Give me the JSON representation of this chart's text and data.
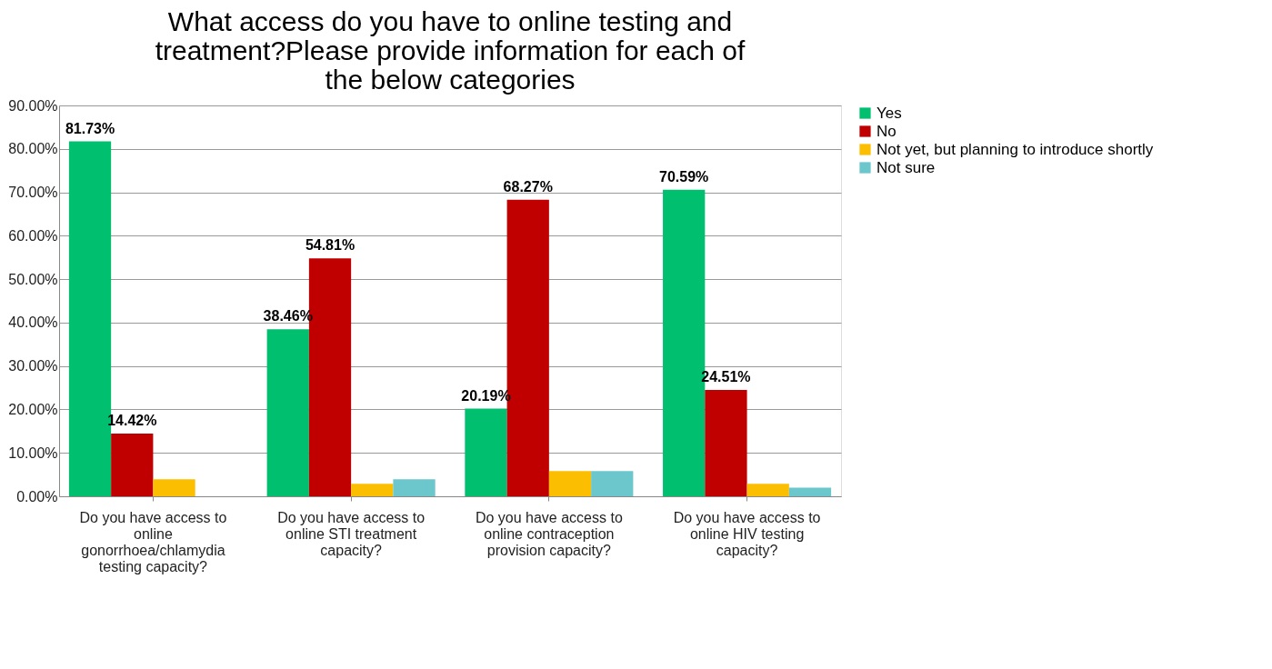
{
  "chart_data": {
    "type": "bar",
    "title": "What access do you have to online testing and treatment?Please provide information for each of the below categories",
    "categories": [
      "Do you have access to online gonorrhoea/chlamydia testing capacity?",
      "Do you have access to online STI treatment capacity?",
      "Do you have access to online contraception provision capacity?",
      "Do you have access to online HIV testing capacity?"
    ],
    "series": [
      {
        "name": "Yes",
        "color": "#00bf6f",
        "values": [
          81.73,
          38.46,
          20.19,
          70.59
        ],
        "value_labels": [
          "81.73%",
          "38.46%",
          "20.19%",
          "70.59%"
        ]
      },
      {
        "name": "No",
        "color": "#c00000",
        "values": [
          14.42,
          54.81,
          68.27,
          24.51
        ],
        "value_labels": [
          "14.42%",
          "54.81%",
          "68.27%",
          "24.51%"
        ]
      },
      {
        "name": "Not yet, but planning to introduce shortly",
        "color": "#fbbe00",
        "values": [
          3.9,
          2.9,
          5.8,
          2.9
        ]
      },
      {
        "name": "Not sure",
        "color": "#6bc7cc",
        "values": [
          0,
          3.9,
          5.8,
          2.0
        ]
      }
    ],
    "ylim": [
      0,
      90
    ],
    "yticks": [
      {
        "value": 0,
        "label": "0.00%"
      },
      {
        "value": 10,
        "label": "10.00%"
      },
      {
        "value": 20,
        "label": "20.00%"
      },
      {
        "value": 30,
        "label": "30.00%"
      },
      {
        "value": 40,
        "label": "40.00%"
      },
      {
        "value": 50,
        "label": "50.00%"
      },
      {
        "value": 60,
        "label": "60.00%"
      },
      {
        "value": 70,
        "label": "70.00%"
      },
      {
        "value": 80,
        "label": "80.00%"
      },
      {
        "value": 90,
        "label": "90.00%"
      }
    ],
    "grid": "y",
    "legend": "right"
  }
}
